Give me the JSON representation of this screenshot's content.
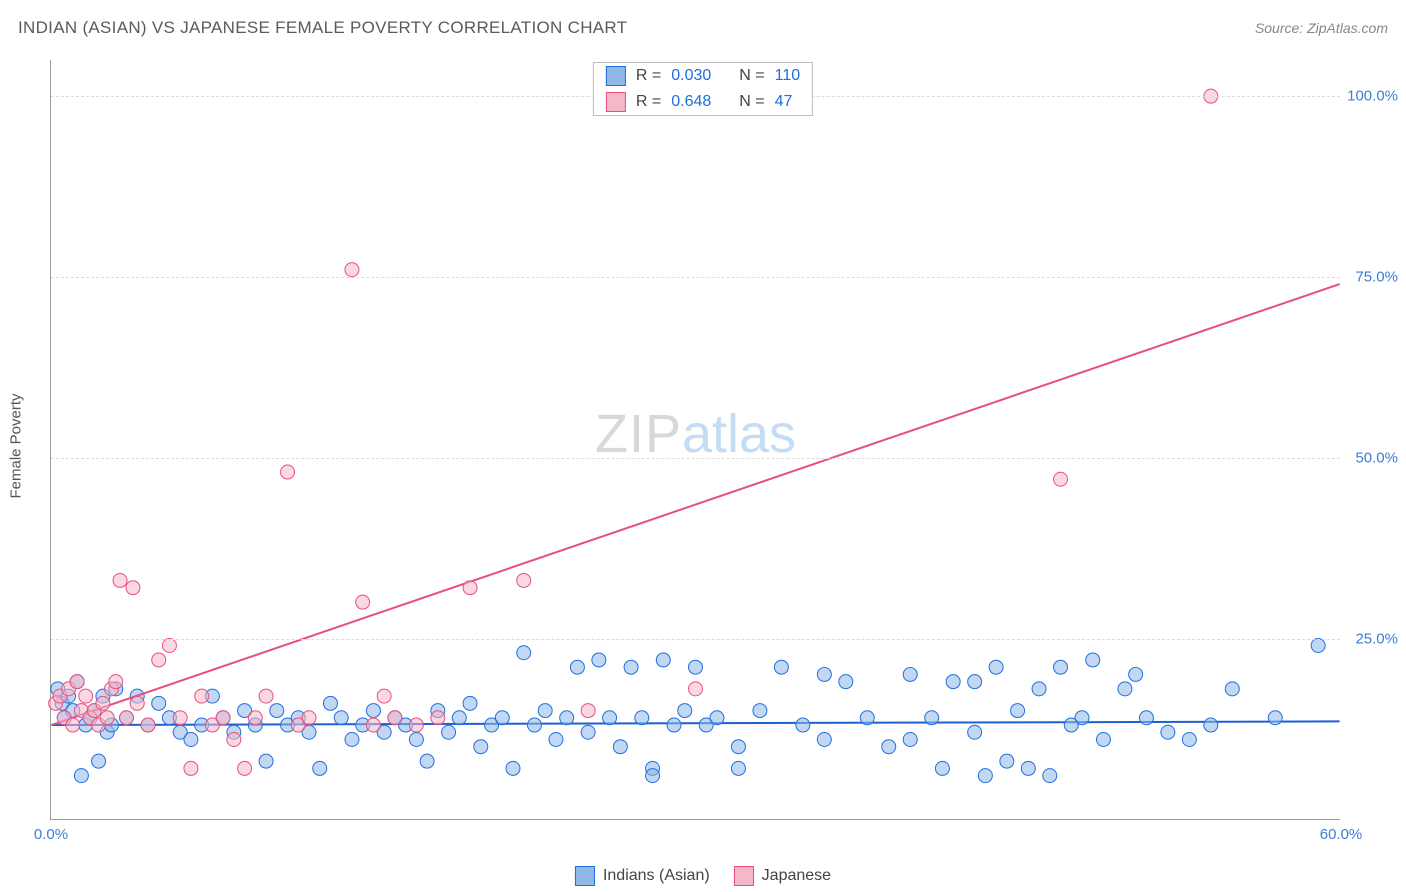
{
  "header": {
    "title": "INDIAN (ASIAN) VS JAPANESE FEMALE POVERTY CORRELATION CHART",
    "source_label": "Source: ZipAtlas.com"
  },
  "watermark": {
    "part1": "ZIP",
    "part2": "atlas"
  },
  "axes": {
    "ylabel": "Female Poverty",
    "xlim": [
      0,
      60
    ],
    "ylim": [
      0,
      105
    ],
    "xtick_labels": {
      "0": "0.0%",
      "60": "60.0%"
    },
    "ytick_labels": {
      "25": "25.0%",
      "50": "50.0%",
      "75": "75.0%",
      "100": "100.0%"
    },
    "gridline_color": "#dcdcdc",
    "axis_color": "#999999",
    "tick_label_color": "#3b7dd8"
  },
  "legend_bottom": {
    "items": [
      {
        "label": "Indians (Asian)",
        "fill": "#8fb8e8",
        "stroke": "#1f6fe0"
      },
      {
        "label": "Japanese",
        "fill": "#f4b8c8",
        "stroke": "#e84f80"
      }
    ]
  },
  "stats_box": {
    "rows": [
      {
        "swatch_fill": "#8fb8e8",
        "swatch_stroke": "#1f6fe0",
        "r_value": "0.030",
        "n_value": "110"
      },
      {
        "swatch_fill": "#f4b8c8",
        "swatch_stroke": "#e84f80",
        "r_value": "0.648",
        "n_value": "47"
      }
    ],
    "r_label": "R =",
    "n_label": "N ="
  },
  "chart": {
    "type": "scatter",
    "background_color": "#ffffff",
    "marker_radius": 7,
    "marker_opacity": 0.55,
    "series": [
      {
        "name": "Indians (Asian)",
        "fill": "#8fb8e8",
        "stroke": "#1f6fe0",
        "trend_line": {
          "x1": 0,
          "y1": 13.0,
          "x2": 60,
          "y2": 13.5,
          "stroke": "#1f5fd0",
          "width": 2
        },
        "points": [
          [
            0.3,
            18
          ],
          [
            0.5,
            16
          ],
          [
            0.6,
            14
          ],
          [
            0.8,
            17
          ],
          [
            1.0,
            15
          ],
          [
            1.2,
            19
          ],
          [
            1.4,
            6
          ],
          [
            1.6,
            13
          ],
          [
            1.8,
            14
          ],
          [
            2.0,
            15
          ],
          [
            2.2,
            8
          ],
          [
            2.4,
            17
          ],
          [
            2.6,
            12
          ],
          [
            2.8,
            13
          ],
          [
            3.0,
            18
          ],
          [
            3.5,
            14
          ],
          [
            4.0,
            17
          ],
          [
            4.5,
            13
          ],
          [
            5.0,
            16
          ],
          [
            5.5,
            14
          ],
          [
            6.0,
            12
          ],
          [
            6.5,
            11
          ],
          [
            7.0,
            13
          ],
          [
            7.5,
            17
          ],
          [
            8.0,
            14
          ],
          [
            8.5,
            12
          ],
          [
            9.0,
            15
          ],
          [
            9.5,
            13
          ],
          [
            10.0,
            8
          ],
          [
            10.5,
            15
          ],
          [
            11.0,
            13
          ],
          [
            11.5,
            14
          ],
          [
            12.0,
            12
          ],
          [
            12.5,
            7
          ],
          [
            13.0,
            16
          ],
          [
            13.5,
            14
          ],
          [
            14.0,
            11
          ],
          [
            14.5,
            13
          ],
          [
            15.0,
            15
          ],
          [
            15.5,
            12
          ],
          [
            16.0,
            14
          ],
          [
            16.5,
            13
          ],
          [
            17.0,
            11
          ],
          [
            17.5,
            8
          ],
          [
            18.0,
            15
          ],
          [
            18.5,
            12
          ],
          [
            19.0,
            14
          ],
          [
            19.5,
            16
          ],
          [
            20.0,
            10
          ],
          [
            20.5,
            13
          ],
          [
            21.0,
            14
          ],
          [
            21.5,
            7
          ],
          [
            22.0,
            23
          ],
          [
            22.5,
            13
          ],
          [
            23.0,
            15
          ],
          [
            23.5,
            11
          ],
          [
            24.0,
            14
          ],
          [
            24.5,
            21
          ],
          [
            25.0,
            12
          ],
          [
            25.5,
            22
          ],
          [
            26.0,
            14
          ],
          [
            26.5,
            10
          ],
          [
            27.0,
            21
          ],
          [
            27.5,
            14
          ],
          [
            28.0,
            7
          ],
          [
            28.5,
            22
          ],
          [
            29.0,
            13
          ],
          [
            29.5,
            15
          ],
          [
            30.0,
            21
          ],
          [
            30.5,
            13
          ],
          [
            31.0,
            14
          ],
          [
            32.0,
            10
          ],
          [
            33.0,
            15
          ],
          [
            34.0,
            21
          ],
          [
            35.0,
            13
          ],
          [
            36.0,
            11
          ],
          [
            37.0,
            19
          ],
          [
            38.0,
            14
          ],
          [
            39.0,
            10
          ],
          [
            40.0,
            20
          ],
          [
            41.0,
            14
          ],
          [
            41.5,
            7
          ],
          [
            42.0,
            19
          ],
          [
            43.0,
            12
          ],
          [
            44.0,
            21
          ],
          [
            45.0,
            15
          ],
          [
            45.5,
            7
          ],
          [
            46.0,
            18
          ],
          [
            46.5,
            6
          ],
          [
            47.0,
            21
          ],
          [
            48.0,
            14
          ],
          [
            48.5,
            22
          ],
          [
            49.0,
            11
          ],
          [
            50.0,
            18
          ],
          [
            51.0,
            14
          ],
          [
            52.0,
            12
          ],
          [
            54.0,
            13
          ],
          [
            55.0,
            18
          ],
          [
            57.0,
            14
          ],
          [
            59.0,
            24
          ],
          [
            28.0,
            6
          ],
          [
            32.0,
            7
          ],
          [
            36.0,
            20
          ],
          [
            40.0,
            11
          ],
          [
            43.0,
            19
          ],
          [
            47.5,
            13
          ],
          [
            50.5,
            20
          ],
          [
            53.0,
            11
          ],
          [
            43.5,
            6
          ],
          [
            44.5,
            8
          ]
        ]
      },
      {
        "name": "Japanese",
        "fill": "#f4b8c8",
        "stroke": "#e84f80",
        "trend_line": {
          "x1": 0,
          "y1": 13.0,
          "x2": 60,
          "y2": 74.0,
          "stroke": "#e84f80",
          "width": 2
        },
        "points": [
          [
            0.2,
            16
          ],
          [
            0.4,
            17
          ],
          [
            0.6,
            14
          ],
          [
            0.8,
            18
          ],
          [
            1.0,
            13
          ],
          [
            1.2,
            19
          ],
          [
            1.4,
            15
          ],
          [
            1.6,
            17
          ],
          [
            1.8,
            14
          ],
          [
            2.0,
            15
          ],
          [
            2.2,
            13
          ],
          [
            2.4,
            16
          ],
          [
            2.6,
            14
          ],
          [
            2.8,
            18
          ],
          [
            3.0,
            19
          ],
          [
            3.5,
            14
          ],
          [
            3.8,
            32
          ],
          [
            4.0,
            16
          ],
          [
            4.5,
            13
          ],
          [
            5.0,
            22
          ],
          [
            5.5,
            24
          ],
          [
            6.0,
            14
          ],
          [
            6.5,
            7
          ],
          [
            7.0,
            17
          ],
          [
            7.5,
            13
          ],
          [
            8.0,
            14
          ],
          [
            8.5,
            11
          ],
          [
            9.0,
            7
          ],
          [
            9.5,
            14
          ],
          [
            10.0,
            17
          ],
          [
            11.0,
            48
          ],
          [
            11.5,
            13
          ],
          [
            12.0,
            14
          ],
          [
            14.0,
            76
          ],
          [
            14.5,
            30
          ],
          [
            15.0,
            13
          ],
          [
            15.5,
            17
          ],
          [
            16.0,
            14
          ],
          [
            17.0,
            13
          ],
          [
            18.0,
            14
          ],
          [
            19.5,
            32
          ],
          [
            22.0,
            33
          ],
          [
            25.0,
            15
          ],
          [
            30.0,
            18
          ],
          [
            47.0,
            47
          ],
          [
            54.0,
            100
          ],
          [
            3.2,
            33
          ]
        ]
      }
    ]
  }
}
